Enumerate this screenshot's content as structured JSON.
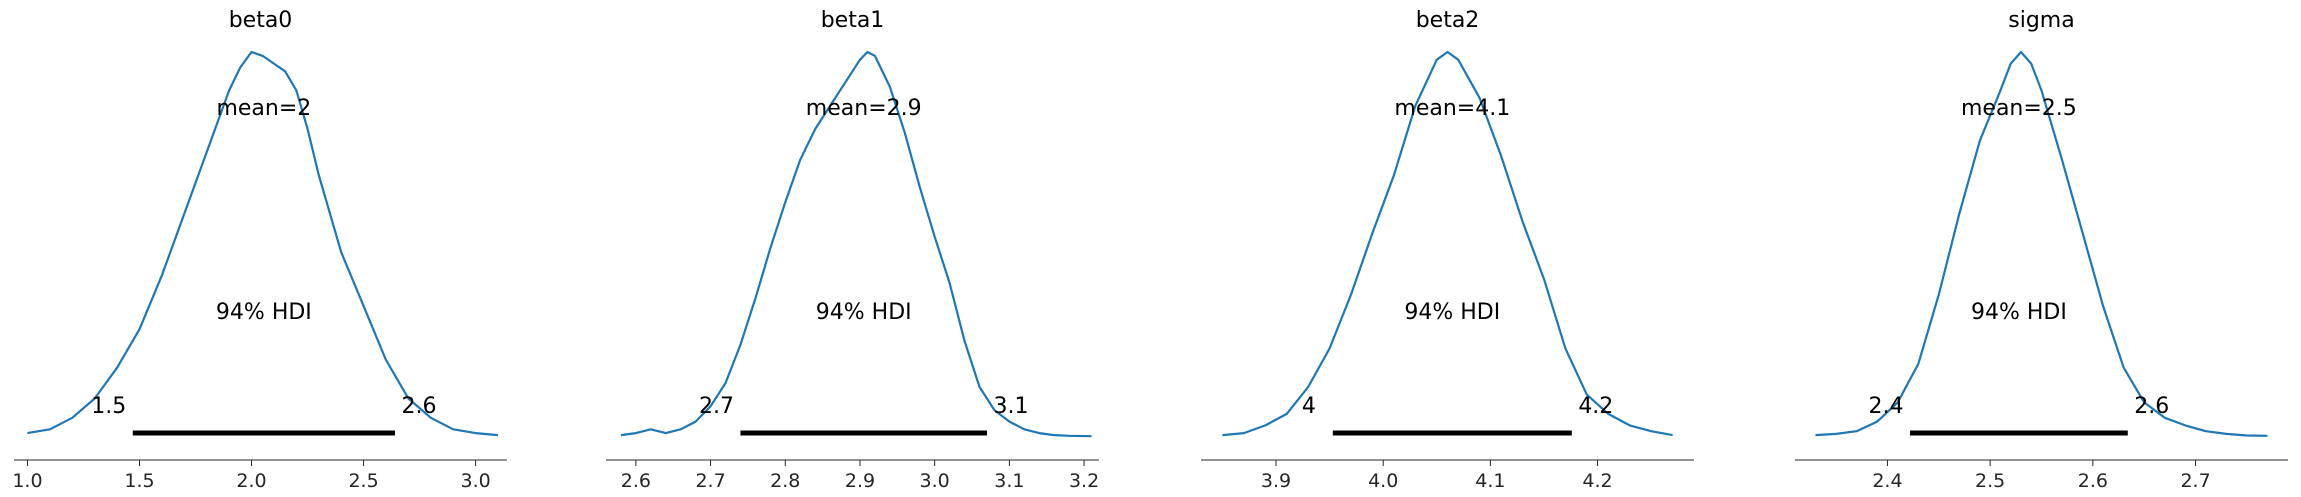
{
  "chart_data": [
    {
      "type": "line",
      "title": "beta0",
      "mean_label": "mean=2",
      "hdi_label": "94% HDI",
      "hdi_low": 1.47,
      "hdi_high": 2.64,
      "hdi_low_label": "1.5",
      "hdi_high_label": "2.6",
      "xlim": [
        0.94,
        3.14
      ],
      "xticks": [
        1.0,
        1.5,
        2.0,
        2.5,
        3.0
      ],
      "xtick_labels": [
        "1.0",
        "1.5",
        "2.0",
        "2.5",
        "3.0"
      ],
      "density": {
        "x": [
          1.0,
          1.1,
          1.2,
          1.3,
          1.4,
          1.5,
          1.6,
          1.7,
          1.8,
          1.9,
          1.95,
          2.0,
          2.05,
          2.1,
          2.15,
          2.2,
          2.25,
          2.3,
          2.4,
          2.5,
          2.6,
          2.7,
          2.8,
          2.9,
          3.0,
          3.1
        ],
        "y": [
          0.01,
          0.02,
          0.05,
          0.1,
          0.18,
          0.28,
          0.42,
          0.58,
          0.74,
          0.9,
          0.96,
          1.0,
          0.99,
          0.97,
          0.95,
          0.9,
          0.8,
          0.68,
          0.48,
          0.34,
          0.2,
          0.1,
          0.05,
          0.02,
          0.01,
          0.005
        ]
      },
      "color": "#1f77b4"
    },
    {
      "type": "line",
      "title": "beta1",
      "mean_label": "mean=2.9",
      "hdi_label": "94% HDI",
      "hdi_low": 2.74,
      "hdi_high": 3.07,
      "hdi_low_label": "2.7",
      "hdi_high_label": "3.1",
      "xlim": [
        2.56,
        3.22
      ],
      "xticks": [
        2.6,
        2.7,
        2.8,
        2.9,
        3.0,
        3.1,
        3.2
      ],
      "xtick_labels": [
        "2.6",
        "2.7",
        "2.8",
        "2.9",
        "3.0",
        "3.1",
        "3.2"
      ],
      "density": {
        "x": [
          2.58,
          2.6,
          2.62,
          2.64,
          2.66,
          2.68,
          2.7,
          2.72,
          2.74,
          2.76,
          2.78,
          2.8,
          2.82,
          2.84,
          2.86,
          2.88,
          2.9,
          2.91,
          2.92,
          2.94,
          2.96,
          2.98,
          3.0,
          3.02,
          3.04,
          3.06,
          3.08,
          3.1,
          3.12,
          3.14,
          3.16,
          3.18,
          3.21
        ],
        "y": [
          0.005,
          0.01,
          0.02,
          0.01,
          0.02,
          0.04,
          0.08,
          0.14,
          0.24,
          0.36,
          0.49,
          0.61,
          0.72,
          0.8,
          0.86,
          0.92,
          0.98,
          1.0,
          0.99,
          0.91,
          0.79,
          0.65,
          0.52,
          0.4,
          0.25,
          0.13,
          0.07,
          0.04,
          0.02,
          0.01,
          0.005,
          0.003,
          0.002
        ]
      },
      "color": "#1f77b4"
    },
    {
      "type": "line",
      "title": "beta2",
      "mean_label": "mean=4.1",
      "hdi_label": "94% HDI",
      "hdi_low": 3.953,
      "hdi_high": 4.176,
      "hdi_low_label": "4",
      "hdi_high_label": "4.2",
      "xlim": [
        3.83,
        4.29
      ],
      "xticks": [
        3.9,
        4.0,
        4.1,
        4.2
      ],
      "xtick_labels": [
        "3.9",
        "4.0",
        "4.1",
        "4.2"
      ],
      "density": {
        "x": [
          3.85,
          3.87,
          3.89,
          3.91,
          3.93,
          3.95,
          3.97,
          3.99,
          4.01,
          4.03,
          4.05,
          4.06,
          4.07,
          4.09,
          4.11,
          4.13,
          4.15,
          4.17,
          4.19,
          4.21,
          4.23,
          4.25,
          4.27
        ],
        "y": [
          0.005,
          0.01,
          0.03,
          0.06,
          0.13,
          0.23,
          0.37,
          0.53,
          0.68,
          0.86,
          0.98,
          1.0,
          0.98,
          0.88,
          0.73,
          0.56,
          0.41,
          0.23,
          0.11,
          0.06,
          0.03,
          0.015,
          0.005
        ]
      },
      "color": "#1f77b4"
    },
    {
      "type": "line",
      "title": "sigma",
      "mean_label": "mean=2.5",
      "hdi_label": "94% HDI",
      "hdi_low": 2.422,
      "hdi_high": 2.634,
      "hdi_low_label": "2.4",
      "hdi_high_label": "2.6",
      "xlim": [
        2.31,
        2.79
      ],
      "xticks": [
        2.4,
        2.5,
        2.6,
        2.7
      ],
      "xtick_labels": [
        "2.4",
        "2.5",
        "2.6",
        "2.7"
      ],
      "density": {
        "x": [
          2.33,
          2.35,
          2.37,
          2.39,
          2.41,
          2.43,
          2.45,
          2.47,
          2.49,
          2.51,
          2.52,
          2.53,
          2.54,
          2.55,
          2.57,
          2.59,
          2.61,
          2.63,
          2.65,
          2.67,
          2.69,
          2.71,
          2.73,
          2.75,
          2.77
        ],
        "y": [
          0.005,
          0.008,
          0.015,
          0.04,
          0.09,
          0.19,
          0.37,
          0.58,
          0.77,
          0.9,
          0.97,
          1.0,
          0.97,
          0.9,
          0.72,
          0.53,
          0.34,
          0.18,
          0.09,
          0.05,
          0.03,
          0.015,
          0.008,
          0.004,
          0.003
        ]
      },
      "color": "#1f77b4"
    }
  ]
}
